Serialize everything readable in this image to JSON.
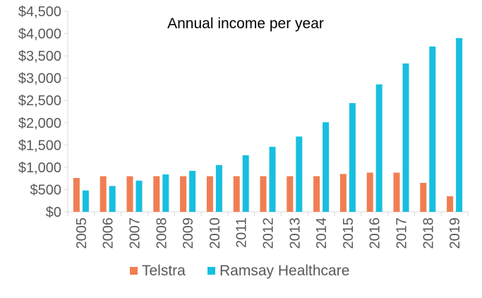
{
  "chart_data": {
    "type": "bar",
    "title": "Annual income per year",
    "xlabel": "",
    "ylabel": "",
    "categories": [
      "2005",
      "2006",
      "2007",
      "2008",
      "2009",
      "2010",
      "2011",
      "2012",
      "2013",
      "2014",
      "2015",
      "2016",
      "2017",
      "2018",
      "2019"
    ],
    "series": [
      {
        "name": "Telstra",
        "color": "#F07E52",
        "values": [
          760,
          800,
          800,
          800,
          800,
          800,
          800,
          800,
          800,
          800,
          850,
          880,
          880,
          650,
          350
        ]
      },
      {
        "name": "Ramsay Healthcare",
        "color": "#17BFE0",
        "values": [
          480,
          580,
          700,
          840,
          920,
          1050,
          1270,
          1460,
          1690,
          2010,
          2440,
          2860,
          3330,
          3710,
          3900
        ]
      }
    ],
    "ylim": [
      0,
      4500
    ],
    "ytick_labels": [
      "$0",
      "$500",
      "$1,000",
      "$1,500",
      "$2,000",
      "$2,500",
      "$3,000",
      "$3,500",
      "$4,000",
      "$4,500"
    ],
    "ytick_values": [
      0,
      500,
      1000,
      1500,
      2000,
      2500,
      3000,
      3500,
      4000,
      4500
    ],
    "grid": false,
    "legend_position": "bottom"
  }
}
